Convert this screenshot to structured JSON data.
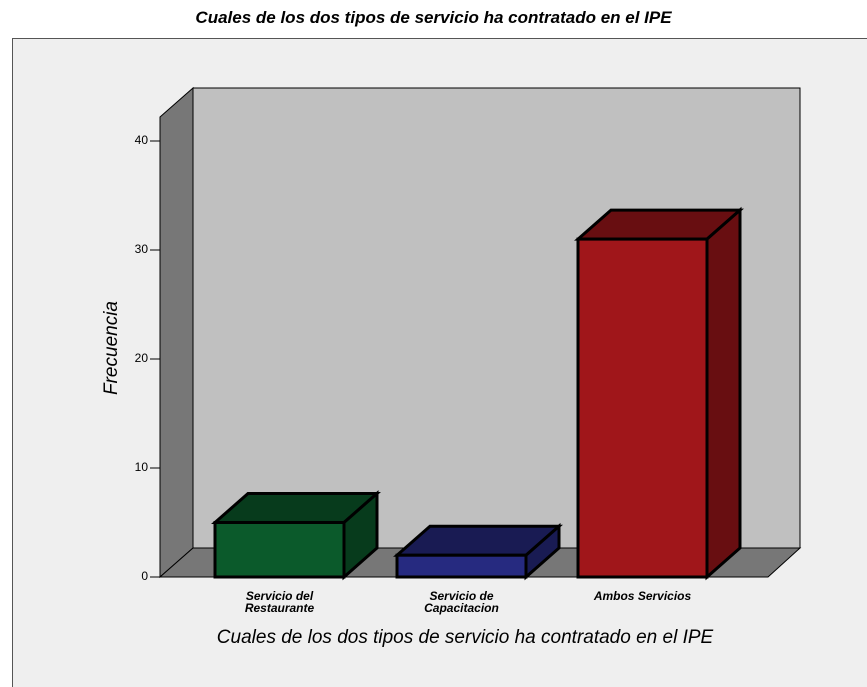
{
  "chart_data": {
    "type": "bar3d",
    "title": "Cuales de los dos tipos de servicio ha contratado en el IPE",
    "x_label": "Cuales de los dos tipos de servicio ha contratado en el IPE",
    "y_label": "Frecuencia",
    "categories": [
      "Servicio del Restaurante",
      "Servicio de Capacitacion",
      "Ambos Servicios"
    ],
    "values": [
      5,
      2,
      31
    ],
    "colors": [
      "#0b5a2b",
      "#262a80",
      "#a0161a"
    ],
    "ylim": [
      0,
      40
    ],
    "yticks": [
      0,
      10,
      20,
      30,
      40
    ],
    "grid": false
  }
}
